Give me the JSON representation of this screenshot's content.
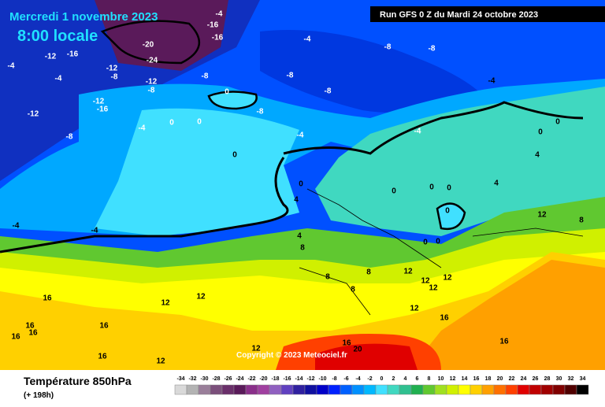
{
  "header": {
    "title": "Mercredi 1 novembre 2023",
    "time": "8:00 locale",
    "run": "Run GFS 0 Z du Mardi 24 octobre 2023"
  },
  "footer": {
    "variable": "Température 850hPa",
    "lead": "(+ 198h)",
    "copyright": "Copyright © 2023 Meteociel.fr"
  },
  "legend": {
    "values": [
      -34,
      -32,
      -30,
      -28,
      -26,
      -24,
      -22,
      -20,
      -18,
      -16,
      -14,
      -12,
      -10,
      -8,
      -6,
      -4,
      -2,
      0,
      2,
      4,
      6,
      8,
      10,
      12,
      14,
      16,
      18,
      20,
      22,
      24,
      26,
      28,
      30,
      32,
      34
    ],
    "colors": [
      "#d9d9d9",
      "#b3b3b3",
      "#9a7f9a",
      "#7b4f7b",
      "#6a2f6a",
      "#5a1a5a",
      "#8a2f8a",
      "#a040a0",
      "#9060c0",
      "#6040c0",
      "#3020a0",
      "#1010a0",
      "#0000c8",
      "#0020ff",
      "#0060ff",
      "#0090ff",
      "#00b8ff",
      "#40e0ff",
      "#40d8c0",
      "#30c090",
      "#20b050",
      "#60c830",
      "#a0e020",
      "#d0f000",
      "#ffff00",
      "#ffd000",
      "#ffa000",
      "#ff7000",
      "#ff4000",
      "#e00000",
      "#c00000",
      "#a00000",
      "#800000",
      "#500000",
      "#000000"
    ]
  },
  "map_labels": [
    "-4",
    "-16",
    "-16",
    "-20",
    "-24",
    "-12",
    "-16",
    "-4",
    "-4",
    "-12",
    "-8",
    "-8",
    "-12",
    "-8",
    "-12",
    "-16",
    "-12",
    "-8",
    "-4",
    "-4",
    "-8",
    "-8",
    "-8",
    "-8",
    "-8",
    "-4",
    "0",
    "0",
    "0",
    "0",
    "-4",
    "-4",
    "0",
    "4",
    "0",
    "0",
    "0",
    "0",
    "0",
    "0",
    "4",
    "4",
    "12",
    "8",
    "-4",
    "-4",
    "4",
    "8",
    "0",
    "0",
    "8",
    "8",
    "12",
    "12",
    "12",
    "8",
    "12",
    "16",
    "12",
    "12",
    "16",
    "16",
    "16",
    "16",
    "16",
    "12",
    "12",
    "16",
    "16",
    "16",
    "20",
    "12"
  ]
}
